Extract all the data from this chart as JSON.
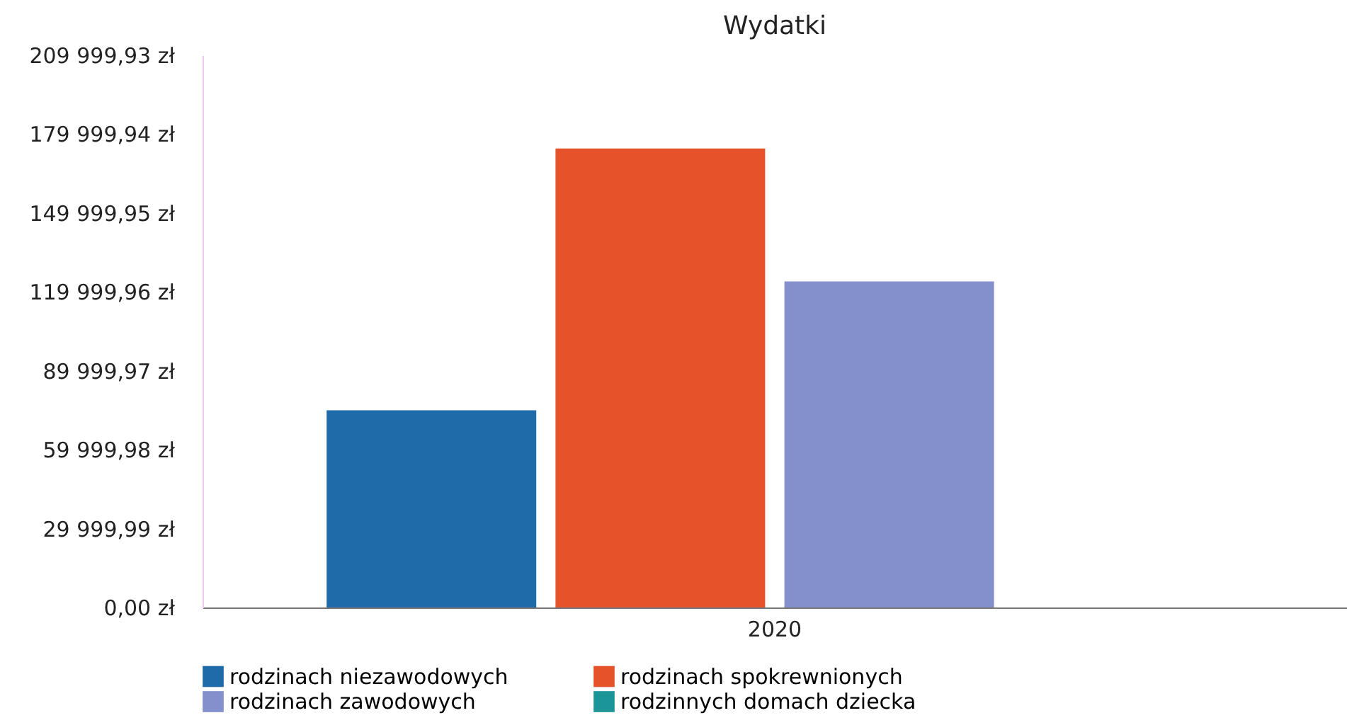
{
  "chart_data": {
    "type": "bar",
    "title": "Wydatki",
    "categories": [
      "2020"
    ],
    "series": [
      {
        "name": "rodzinach niezawodowych",
        "color": "#1f6aa8",
        "values": [
          75000
        ]
      },
      {
        "name": "rodzinach spokrewnionych",
        "color": "#e5532b",
        "values": [
          174500
        ]
      },
      {
        "name": "rodzinach zawodowych",
        "color": "#8390cc",
        "values": [
          124000
        ]
      },
      {
        "name": "rodzinnych domach dziecka",
        "color": "#1c9599",
        "values": [
          0
        ]
      }
    ],
    "ylim": [
      0,
      209999.93
    ],
    "yticks": [
      {
        "value": 0,
        "label": "0,00 zł"
      },
      {
        "value": 29999.99,
        "label": "29 999,99 zł"
      },
      {
        "value": 59999.98,
        "label": "59 999,98 zł"
      },
      {
        "value": 89999.97,
        "label": "89 999,97 zł"
      },
      {
        "value": 119999.96,
        "label": "119 999,96 zł"
      },
      {
        "value": 149999.95,
        "label": "149 999,95 zł"
      },
      {
        "value": 179999.94,
        "label": "179 999,94 zł"
      },
      {
        "value": 209999.93,
        "label": "209 999,93 zł"
      }
    ],
    "grid": false,
    "legend": "bottom"
  }
}
